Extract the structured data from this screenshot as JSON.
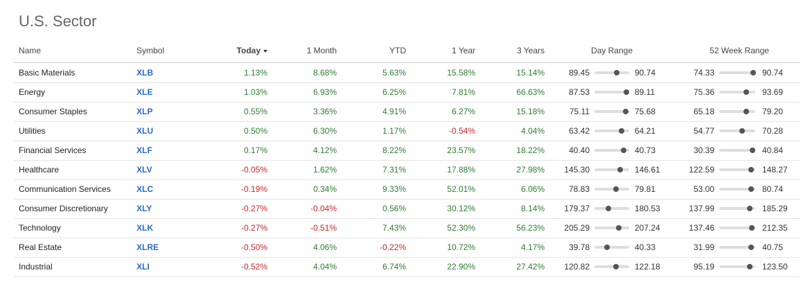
{
  "header": {
    "title": "U.S. Sector"
  },
  "table": {
    "columns": [
      "Name",
      "Symbol",
      "Today",
      "1 Month",
      "YTD",
      "1 Year",
      "3 Years",
      "Day Range",
      "52 Week Range"
    ],
    "sorted_column": 2,
    "rows": [
      {
        "name": "Basic Materials",
        "symbol": "XLB",
        "today": "1.13%",
        "one_month": "8.68%",
        "ytd": "5.63%",
        "one_year": "15.58%",
        "three_years": "15.14%",
        "day_range": {
          "low": "89.45",
          "high": "90.74",
          "current": 90.28
        },
        "week52_range": {
          "low": "74.33",
          "high": "90.74",
          "current": 89.76
        }
      },
      {
        "name": "Energy",
        "symbol": "XLE",
        "today": "1.03%",
        "one_month": "6.93%",
        "ytd": "6.25%",
        "one_year": "7.81%",
        "three_years": "66.63%",
        "day_range": {
          "low": "87.53",
          "high": "89.11",
          "current": 88.98
        },
        "week52_range": {
          "low": "75.36",
          "high": "93.69",
          "current": 89.11
        }
      },
      {
        "name": "Consumer Staples",
        "symbol": "XLP",
        "today": "0.55%",
        "one_month": "3.36%",
        "ytd": "4.91%",
        "one_year": "6.27%",
        "three_years": "15.18%",
        "day_range": {
          "low": "75.11",
          "high": "75.68",
          "current": 75.62
        },
        "week52_range": {
          "low": "65.18",
          "high": "79.20",
          "current": 75.7
        }
      },
      {
        "name": "Utilities",
        "symbol": "XLU",
        "today": "0.50%",
        "one_month": "6.30%",
        "ytd": "1.17%",
        "one_year": "-0.54%",
        "three_years": "4.04%",
        "day_range": {
          "low": "63.42",
          "high": "64.21",
          "current": 64.04
        },
        "week52_range": {
          "low": "54.77",
          "high": "70.28",
          "current": 64.54
        }
      },
      {
        "name": "Financial Services",
        "symbol": "XLF",
        "today": "0.17%",
        "one_month": "4.12%",
        "ytd": "8.22%",
        "one_year": "23.57%",
        "three_years": "18.22%",
        "day_range": {
          "low": "40.40",
          "high": "40.73",
          "current": 40.68
        },
        "week52_range": {
          "low": "30.39",
          "high": "40.84",
          "current": 40.0
        }
      },
      {
        "name": "Healthcare",
        "symbol": "XLV",
        "today": "-0.05%",
        "one_month": "1.62%",
        "ytd": "7.31%",
        "one_year": "17.88%",
        "three_years": "27.98%",
        "day_range": {
          "low": "145.30",
          "high": "146.61",
          "current": 146.27
        },
        "week52_range": {
          "low": "122.59",
          "high": "148.27",
          "current": 145.19
        }
      },
      {
        "name": "Communication Services",
        "symbol": "XLC",
        "today": "-0.19%",
        "one_month": "0.34%",
        "ytd": "9.33%",
        "one_year": "52.01%",
        "three_years": "6.06%",
        "day_range": {
          "low": "78.83",
          "high": "79.81",
          "current": 79.44
        },
        "week52_range": {
          "low": "53.00",
          "high": "80.74",
          "current": 77.41
        }
      },
      {
        "name": "Consumer Discretionary",
        "symbol": "XLY",
        "today": "-0.27%",
        "one_month": "-0.04%",
        "ytd": "0.56%",
        "one_year": "30.12%",
        "three_years": "8.14%",
        "day_range": {
          "low": "179.37",
          "high": "180.53",
          "current": 179.83
        },
        "week52_range": {
          "low": "137.99",
          "high": "185.29",
          "current": 178.2
        }
      },
      {
        "name": "Technology",
        "symbol": "XLK",
        "today": "-0.27%",
        "one_month": "-0.51%",
        "ytd": "7.43%",
        "one_year": "52.30%",
        "three_years": "56.23%",
        "day_range": {
          "low": "205.29",
          "high": "207.24",
          "current": 206.66
        },
        "week52_range": {
          "low": "137.46",
          "high": "212.35",
          "current": 204.86
        }
      },
      {
        "name": "Real Estate",
        "symbol": "XLRE",
        "today": "-0.50%",
        "one_month": "4.06%",
        "ytd": "-0.22%",
        "one_year": "10.72%",
        "three_years": "4.17%",
        "day_range": {
          "low": "39.78",
          "high": "40.33",
          "current": 39.98
        },
        "week52_range": {
          "low": "31.99",
          "high": "40.75",
          "current": 39.7
        }
      },
      {
        "name": "Industrial",
        "symbol": "XLI",
        "today": "-0.52%",
        "one_month": "4.04%",
        "ytd": "6.74%",
        "one_year": "22.90%",
        "three_years": "27.42%",
        "day_range": {
          "low": "120.82",
          "high": "122.18",
          "current": 121.66
        },
        "week52_range": {
          "low": "95.19",
          "high": "123.50",
          "current": 119.25
        }
      }
    ]
  }
}
